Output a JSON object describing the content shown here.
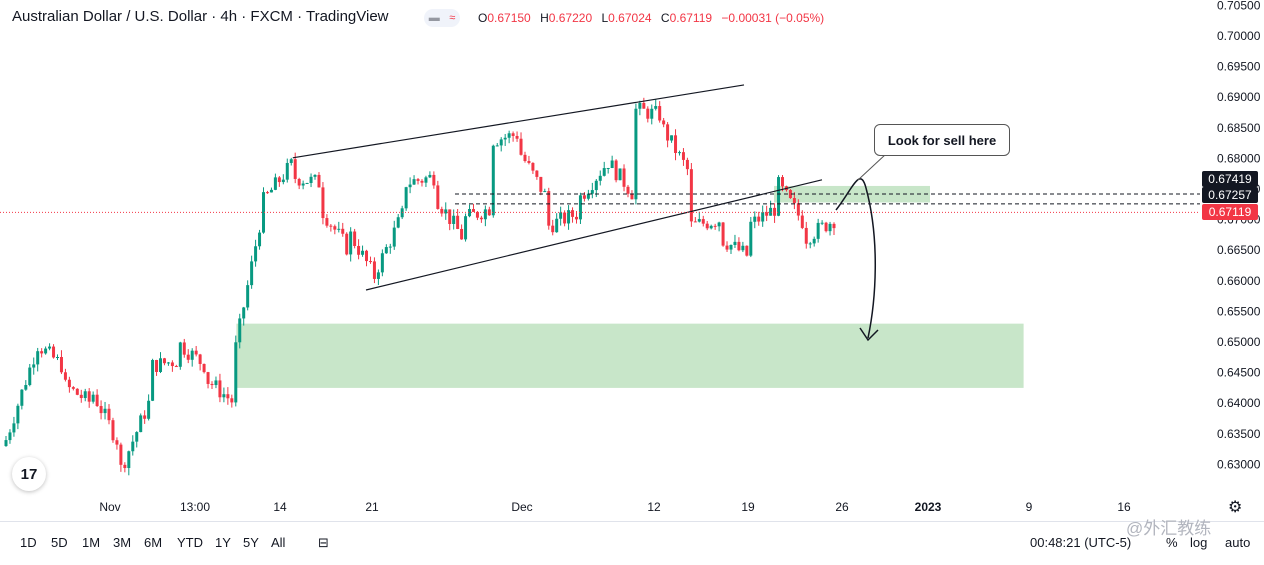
{
  "header": {
    "title": "Australian Dollar / U.S. Dollar · 4h · FXCM · TradingView",
    "badge_icon": "wave-compare-icon",
    "ohlc": {
      "o_label": "O",
      "o_value": "0.67150",
      "h_label": "H",
      "h_value": "0.67220",
      "l_label": "L",
      "l_value": "0.67024",
      "c_label": "C",
      "c_value": "0.67119",
      "change": "−0.00031 (−0.05%)"
    }
  },
  "annotation": {
    "callout_text": "Look for sell here"
  },
  "price_tags": [
    {
      "value": "0.67419",
      "bg": "#131722"
    },
    {
      "value": "0.67257",
      "bg": "#131722"
    },
    {
      "value": "0.67119",
      "bg": "#f23645"
    }
  ],
  "chart_data": {
    "type": "candlestick",
    "yaxis": {
      "min": 0.625,
      "max": 0.705,
      "ticks": [
        "0.70500",
        "0.70000",
        "0.69500",
        "0.69000",
        "0.68500",
        "0.68000",
        "0.67500",
        "0.67000",
        "0.66500",
        "0.66000",
        "0.65500",
        "0.65000",
        "0.64500",
        "0.64000",
        "0.63500",
        "0.63000"
      ]
    },
    "xaxis": {
      "labels": [
        "Nov",
        "13:00",
        "14",
        "21",
        "Dec",
        "12",
        "19",
        "26",
        "2023",
        "9",
        "16"
      ]
    },
    "waypoints": [
      [
        0.633,
        0.634
      ],
      [
        0.648,
        0.65
      ],
      [
        0.646,
        0.643
      ],
      [
        0.64,
        0.642
      ],
      [
        0.633,
        0.629
      ],
      [
        0.64,
        0.646
      ],
      [
        0.647,
        0.65
      ],
      [
        0.646,
        0.644
      ],
      [
        0.64,
        0.648
      ],
      [
        0.672,
        0.673
      ],
      [
        0.679,
        0.677
      ],
      [
        0.676,
        0.672
      ],
      [
        0.665,
        0.668
      ],
      [
        0.66,
        0.662
      ],
      [
        0.672,
        0.676
      ],
      [
        0.677,
        0.674
      ],
      [
        0.667,
        0.67
      ],
      [
        0.672,
        0.683
      ],
      [
        0.684,
        0.681
      ],
      [
        0.673,
        0.669
      ],
      [
        0.671,
        0.673
      ],
      [
        0.679,
        0.68
      ],
      [
        0.674,
        0.688
      ],
      [
        0.687,
        0.685
      ],
      [
        0.677,
        0.669
      ],
      [
        0.67,
        0.667
      ],
      [
        0.664,
        0.669
      ],
      [
        0.672,
        0.676
      ],
      [
        0.669,
        0.667
      ],
      [
        0.67,
        0.6712
      ]
    ],
    "zones": [
      {
        "name": "supply-zone",
        "x_start": 0.645,
        "x_end": 0.775,
        "y_low": 0.6728,
        "y_high": 0.6755,
        "color": "#c8e6c9"
      },
      {
        "name": "demand-zone",
        "x_start": 0.197,
        "x_end": 0.853,
        "y_low": 0.6425,
        "y_high": 0.653,
        "color": "#c8e6c9"
      }
    ],
    "trendlines": [
      {
        "from": [
          0.244,
          0.6801
        ],
        "to": [
          0.62,
          0.692
        ]
      },
      {
        "from": [
          0.305,
          0.6585
        ],
        "to": [
          0.685,
          0.6765
        ]
      }
    ],
    "dashed_levels": [
      0.67257,
      0.67419
    ],
    "last_price": 0.67119,
    "colors": {
      "up": "#089981",
      "down": "#f23645",
      "zone": "#c8e6c9"
    }
  },
  "bottom": {
    "timeframes": [
      "1D",
      "5D",
      "1M",
      "3M",
      "6M",
      "YTD",
      "1Y",
      "5Y",
      "All"
    ],
    "compare_icon": "calendar-range-icon",
    "clock": "00:48:21 (UTC-5)",
    "pct": "%",
    "log": "log",
    "auto": "auto",
    "watermark": "@外汇教练",
    "settings_icon": "gear-icon",
    "logo_text": "17"
  }
}
